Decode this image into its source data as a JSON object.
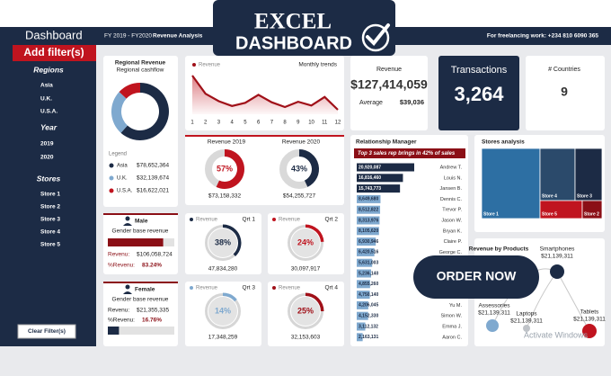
{
  "banner": {
    "line1": "EXCEL",
    "line2": "DASHBOARD"
  },
  "header": {
    "title": "Dashboard",
    "period": "FY 2019 - FY2020",
    "subtitle": "Revenue Analysis",
    "contact": "For freelancing work: +234 810 6090 365"
  },
  "sidebar": {
    "add_filter": "Add filter(s)",
    "groups": [
      {
        "title": "Regions",
        "items": [
          "Asia",
          "U.K.",
          "U.S.A."
        ]
      },
      {
        "title": "Year",
        "items": [
          "2019",
          "2020"
        ]
      },
      {
        "title": "Stores",
        "items": [
          "Store 1",
          "Store 2",
          "Store 3",
          "Store 4",
          "Store 5"
        ]
      }
    ],
    "clear": "Clear Filter(s)"
  },
  "regional": {
    "title": "Regional Revenue",
    "subtitle": "Regional cashflow",
    "legend_title": "Legend",
    "items": [
      {
        "name": "Asia",
        "value": 78652364,
        "label": "$78,652,364",
        "color": "#1c2b45"
      },
      {
        "name": "U.K.",
        "value": 32139674,
        "label": "$32,139,674",
        "color": "#7fa9cf"
      },
      {
        "name": "U.S.A.",
        "value": 16622021,
        "label": "$16,622,021",
        "color": "#c0141f"
      }
    ]
  },
  "trend": {
    "legend": "Revenue",
    "title": "Monthly trends",
    "color": "#a01018",
    "months": [
      1,
      2,
      3,
      4,
      5,
      6,
      7,
      8,
      9,
      10,
      11,
      12
    ],
    "values": [
      15.2,
      11.8,
      10.4,
      9.5,
      10.1,
      11.6,
      10.2,
      9.3,
      10.3,
      9.6,
      11.2,
      8.8
    ]
  },
  "yearly": [
    {
      "title": "Revenue  2019",
      "percent": 57,
      "percent_label": "57%",
      "value": 73158332,
      "label": "$73,158,332",
      "color": "#c0141f"
    },
    {
      "title": "Revenue  2020",
      "percent": 43,
      "percent_label": "43%",
      "value": 54255727,
      "label": "$54,255,727",
      "color": "#1c2b45"
    }
  ],
  "gender": [
    {
      "title": "Male",
      "subtitle": "Gender base revenue",
      "revenue_caption": "Revenu:",
      "value": 106058724,
      "label": "$106,058,724",
      "percent_caption": "%Revenu:",
      "percent": 83.24,
      "percent_label": "83.24%",
      "color": "#8b0f16"
    },
    {
      "title": "Female",
      "subtitle": "Gender base revenue",
      "revenue_caption": "Revenu:",
      "value": 21355335,
      "label": "$21,355,335",
      "percent_caption": "%Revenu:",
      "percent": 16.76,
      "percent_label": "16.76%",
      "color": "#1c2b45"
    }
  ],
  "quarters": [
    {
      "legend": "Revenue",
      "title": "Qrt 1",
      "percent": 38,
      "percent_label": "38%",
      "value": 47834280,
      "label": "47,834,280",
      "color": "#1c2b45"
    },
    {
      "legend": "Revenue",
      "title": "Qrt 2",
      "percent": 24,
      "percent_label": "24%",
      "value": 30097917,
      "label": "30,097,917",
      "color": "#c0141f"
    },
    {
      "legend": "Revenue",
      "title": "Qrt 3",
      "percent": 14,
      "percent_label": "14%",
      "value": 17348259,
      "label": "17,348,259",
      "color": "#7fa9cf"
    },
    {
      "legend": "Revenue",
      "title": "Qrt 4",
      "percent": 25,
      "percent_label": "25%",
      "value": 32153603,
      "label": "32,153,603",
      "color": "#a01018"
    }
  ],
  "kpis": {
    "revenue": {
      "title": "Revenue",
      "value": 127414059,
      "label": "$127,414,059",
      "avg_caption": "Average",
      "avg": 39036,
      "avg_label": "$39,036"
    },
    "transactions": {
      "title": "Transactions",
      "value": 3264,
      "label": "3,264"
    },
    "countries": {
      "title": "# Countries",
      "value": 9
    }
  },
  "managers": {
    "title": "Relationship Manager",
    "banner": "Top  3 sales rep brings in 42% of sales",
    "rows": [
      {
        "name": "Andrew T.",
        "value": 20920087,
        "label": "20,920,087"
      },
      {
        "name": "Louis N.",
        "value": 16816460,
        "label": "16,816,460"
      },
      {
        "name": "Jansen B.",
        "value": 15743773,
        "label": "15,743,773"
      },
      {
        "name": "Dennis C.",
        "value": 8649680,
        "label": "8,649,680"
      },
      {
        "name": "Trevor P.",
        "value": 8512822,
        "label": "8,512,822"
      },
      {
        "name": "Jason W.",
        "value": 8313976,
        "label": "8,313,976"
      },
      {
        "name": "Bryan K.",
        "value": 8105620,
        "label": "8,105,620"
      },
      {
        "name": "Claire P.",
        "value": 6930946,
        "label": "6,930,946"
      },
      {
        "name": "George C.",
        "value": 6420516,
        "label": "6,420,516"
      },
      {
        "name": null,
        "value": 5631003,
        "label": "5,631,003"
      },
      {
        "name": null,
        "value": 5236140,
        "label": "5,236,140"
      },
      {
        "name": null,
        "value": 4855260,
        "label": "4,855,260"
      },
      {
        "name": null,
        "value": 4750140,
        "label": "4,750,140"
      },
      {
        "name": "Yu M.",
        "value": 4206045,
        "label": "4,206,045"
      },
      {
        "name": "Simon W.",
        "value": 4152330,
        "label": "4,152,330"
      },
      {
        "name": "Emma J.",
        "value": 3112132,
        "label": "3,112,132"
      },
      {
        "name": "Aaron C.",
        "value": 2163131,
        "label": "2,163,131"
      }
    ]
  },
  "stores": {
    "title": "Stores analysis",
    "tiles": [
      {
        "name": "Store 1",
        "color": "#2d6fa3"
      },
      {
        "name": "Store 4",
        "color": "#2b4a6b"
      },
      {
        "name": "Store 3",
        "color": "#1c2b45"
      },
      {
        "name": "Store 5",
        "color": "#c0141f"
      },
      {
        "name": "Store 2",
        "color": "#8b0f16"
      }
    ]
  },
  "products": {
    "title": "Revenue by Products",
    "items": [
      {
        "name": "Smartphones",
        "value": 21139311,
        "label": "$21,139,311",
        "color": "#1c2b45"
      },
      {
        "name": "Assessories",
        "value": 21139311,
        "label": "$21,139,311",
        "color": "#7fa9cf"
      },
      {
        "name": "Laptops",
        "value": 21139311,
        "label": "$21,139,311",
        "color": "#bfc3c8"
      },
      {
        "name": "Tablets",
        "value": 21139311,
        "label": "$21,139,311",
        "color": "#c0141f"
      }
    ]
  },
  "order": "ORDER NOW",
  "watermark": "Activate Windows"
}
